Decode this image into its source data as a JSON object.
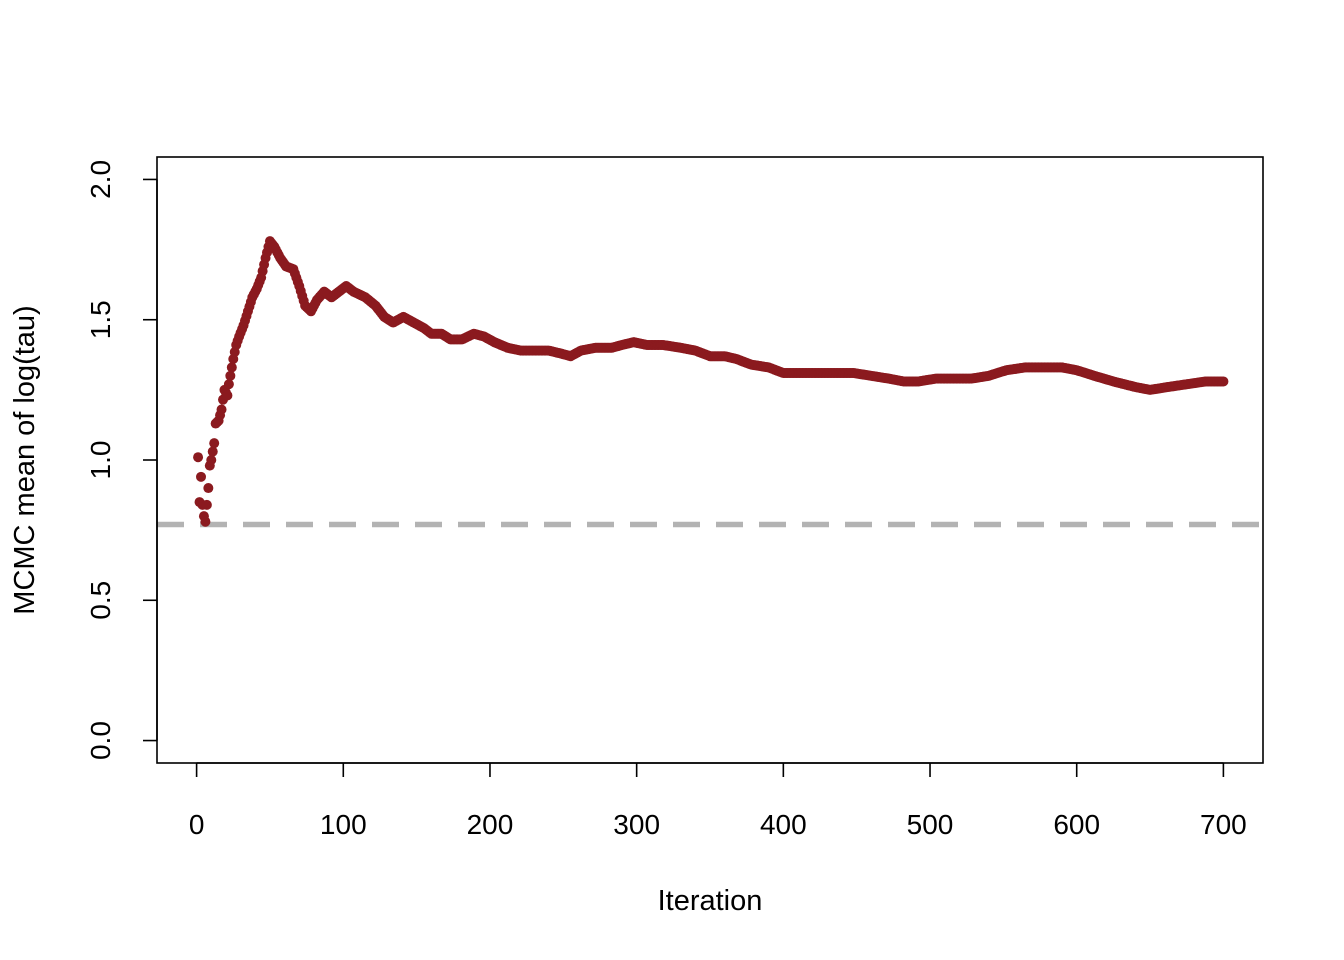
{
  "chart_data": {
    "type": "scatter",
    "title": "",
    "xlabel": "Iteration",
    "ylabel": "MCMC mean of log(tau)",
    "xlim": [
      -27,
      727
    ],
    "ylim": [
      -0.08,
      2.08
    ],
    "x_ticks": [
      0,
      100,
      200,
      300,
      400,
      500,
      600,
      700
    ],
    "x_tick_labels": [
      "0",
      "100",
      "200",
      "300",
      "400",
      "500",
      "600",
      "700"
    ],
    "y_ticks": [
      0.0,
      0.5,
      1.0,
      1.5,
      2.0
    ],
    "y_tick_labels": [
      "0.0",
      "0.5",
      "1.0",
      "1.5",
      "2.0"
    ],
    "grid": false,
    "legend": "none",
    "series_color": "#8B1A1F",
    "reference_line": {
      "y": 0.77,
      "color": "#B3B3B3",
      "style": "dashed"
    },
    "series": [
      {
        "keypoints": [
          [
            1,
            1.01
          ],
          [
            2,
            0.85
          ],
          [
            3,
            0.94
          ],
          [
            4,
            0.84
          ],
          [
            5,
            0.8
          ],
          [
            6,
            0.78
          ],
          [
            8,
            0.9
          ],
          [
            9,
            0.98
          ],
          [
            10,
            1.0
          ],
          [
            12,
            1.06
          ],
          [
            13,
            1.13
          ],
          [
            15,
            1.14
          ],
          [
            17,
            1.18
          ],
          [
            19,
            1.25
          ],
          [
            21,
            1.23
          ],
          [
            22,
            1.27
          ],
          [
            24,
            1.33
          ],
          [
            25,
            1.36
          ],
          [
            27,
            1.41
          ],
          [
            29,
            1.44
          ],
          [
            32,
            1.48
          ],
          [
            35,
            1.53
          ],
          [
            38,
            1.58
          ],
          [
            41,
            1.61
          ],
          [
            44,
            1.65
          ],
          [
            47,
            1.72
          ],
          [
            50,
            1.78
          ],
          [
            53,
            1.76
          ],
          [
            57,
            1.72
          ],
          [
            61,
            1.69
          ],
          [
            66,
            1.68
          ],
          [
            70,
            1.62
          ],
          [
            74,
            1.55
          ],
          [
            78,
            1.53
          ],
          [
            82,
            1.57
          ],
          [
            87,
            1.6
          ],
          [
            92,
            1.58
          ],
          [
            97,
            1.6
          ],
          [
            102,
            1.62
          ],
          [
            107,
            1.6
          ],
          [
            115,
            1.58
          ],
          [
            122,
            1.55
          ],
          [
            128,
            1.51
          ],
          [
            134,
            1.49
          ],
          [
            141,
            1.51
          ],
          [
            148,
            1.49
          ],
          [
            155,
            1.47
          ],
          [
            160,
            1.45
          ],
          [
            167,
            1.45
          ],
          [
            173,
            1.43
          ],
          [
            181,
            1.43
          ],
          [
            189,
            1.45
          ],
          [
            196,
            1.44
          ],
          [
            203,
            1.42
          ],
          [
            212,
            1.4
          ],
          [
            221,
            1.39
          ],
          [
            230,
            1.39
          ],
          [
            240,
            1.39
          ],
          [
            248,
            1.38
          ],
          [
            255,
            1.37
          ],
          [
            262,
            1.39
          ],
          [
            272,
            1.4
          ],
          [
            283,
            1.4
          ],
          [
            290,
            1.41
          ],
          [
            298,
            1.42
          ],
          [
            307,
            1.41
          ],
          [
            318,
            1.41
          ],
          [
            330,
            1.4
          ],
          [
            340,
            1.39
          ],
          [
            350,
            1.37
          ],
          [
            360,
            1.37
          ],
          [
            368,
            1.36
          ],
          [
            378,
            1.34
          ],
          [
            390,
            1.33
          ],
          [
            400,
            1.31
          ],
          [
            412,
            1.31
          ],
          [
            425,
            1.31
          ],
          [
            435,
            1.31
          ],
          [
            448,
            1.31
          ],
          [
            460,
            1.3
          ],
          [
            472,
            1.29
          ],
          [
            482,
            1.28
          ],
          [
            492,
            1.28
          ],
          [
            504,
            1.29
          ],
          [
            516,
            1.29
          ],
          [
            528,
            1.29
          ],
          [
            540,
            1.3
          ],
          [
            552,
            1.32
          ],
          [
            565,
            1.33
          ],
          [
            578,
            1.33
          ],
          [
            590,
            1.33
          ],
          [
            600,
            1.32
          ],
          [
            612,
            1.3
          ],
          [
            625,
            1.28
          ],
          [
            640,
            1.26
          ],
          [
            650,
            1.25
          ],
          [
            662,
            1.26
          ],
          [
            675,
            1.27
          ],
          [
            688,
            1.28
          ],
          [
            700,
            1.28
          ]
        ]
      }
    ]
  }
}
